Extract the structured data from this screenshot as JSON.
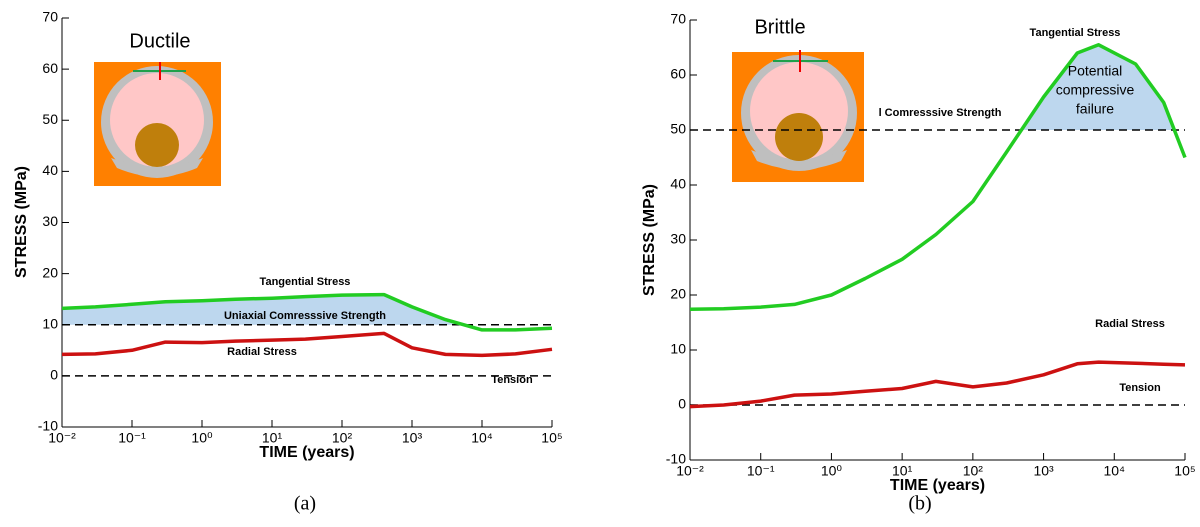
{
  "chart_data": [
    {
      "type": "line",
      "inset_label": "Ductile",
      "caption": "(a)",
      "x_label": "TIME (years)",
      "y_label": "STRESS (MPa)",
      "xscale": "log",
      "xlim": [
        0.01,
        100000
      ],
      "ylim": [
        -10,
        70
      ],
      "xticks": [
        {
          "value": 0.01,
          "label": "10⁻²"
        },
        {
          "value": 0.1,
          "label": "10⁻¹"
        },
        {
          "value": 1,
          "label": "10⁰"
        },
        {
          "value": 10,
          "label": "10¹"
        },
        {
          "value": 100,
          "label": "10²"
        },
        {
          "value": 1000,
          "label": "10³"
        },
        {
          "value": 10000,
          "label": "10⁴"
        },
        {
          "value": 100000,
          "label": "10⁵"
        }
      ],
      "yticks": [
        -10,
        0,
        10,
        20,
        30,
        40,
        50,
        60,
        70
      ],
      "x": [
        0.01,
        0.03,
        0.1,
        0.3,
        1,
        3,
        10,
        30,
        100,
        400,
        1000,
        3000,
        10000,
        30000,
        100000
      ],
      "series": [
        {
          "name": "Tangential Stress",
          "color": "#22cc22",
          "values": [
            13.2,
            13.5,
            14,
            14.5,
            14.7,
            15,
            15.2,
            15.5,
            15.8,
            15.9,
            13.5,
            11,
            9,
            9,
            9.3
          ]
        },
        {
          "name": "Radial Stress",
          "color": "#cc1111",
          "values": [
            4.2,
            4.3,
            5,
            6.6,
            6.5,
            6.8,
            7,
            7.2,
            7.7,
            8.3,
            5.5,
            4.2,
            4,
            4.3,
            5.2
          ]
        }
      ],
      "reference_lines": [
        {
          "value": 10,
          "label": "Uniaxial Comresssive Strength",
          "shade_color": "#bdd7ee"
        },
        {
          "value": 0,
          "label": "Tension"
        }
      ]
    },
    {
      "type": "line",
      "inset_label": "Brittle",
      "caption": "(b)",
      "x_label": "TIME (years)",
      "y_label": "STRESS (MPa)",
      "xscale": "log",
      "xlim": [
        0.01,
        100000
      ],
      "ylim": [
        -10,
        70
      ],
      "xticks": [
        {
          "value": 0.01,
          "label": "10⁻²"
        },
        {
          "value": 0.1,
          "label": "10⁻¹"
        },
        {
          "value": 1,
          "label": "10⁰"
        },
        {
          "value": 10,
          "label": "10¹"
        },
        {
          "value": 100,
          "label": "10²"
        },
        {
          "value": 1000,
          "label": "10³"
        },
        {
          "value": 10000,
          "label": "10⁴"
        },
        {
          "value": 100000,
          "label": "10⁵"
        }
      ],
      "yticks": [
        -10,
        0,
        10,
        20,
        30,
        40,
        50,
        60,
        70
      ],
      "x": [
        0.01,
        0.03,
        0.1,
        0.3,
        1,
        3,
        10,
        30,
        100,
        300,
        1000,
        3000,
        6000,
        20000,
        50000,
        100000
      ],
      "series": [
        {
          "name": "Tangential Stress",
          "color": "#22cc22",
          "values": [
            17.4,
            17.5,
            17.8,
            18.3,
            20,
            23,
            26.5,
            31,
            37,
            46,
            56,
            64,
            65.5,
            62,
            55,
            45
          ]
        },
        {
          "name": "Radial Stress",
          "color": "#cc1111",
          "values": [
            -0.3,
            0,
            0.7,
            1.8,
            2,
            2.5,
            3,
            4.3,
            3.3,
            4,
            5.5,
            7.5,
            7.8,
            7.6,
            7.4,
            7.3
          ]
        }
      ],
      "reference_lines": [
        {
          "value": 50,
          "label": "l Comresssive Strength",
          "shade_color": "#bdd7ee"
        },
        {
          "value": 0,
          "label": "Tension"
        }
      ],
      "annotation_lines": [
        "Potential",
        "compressive",
        "failure"
      ]
    }
  ]
}
